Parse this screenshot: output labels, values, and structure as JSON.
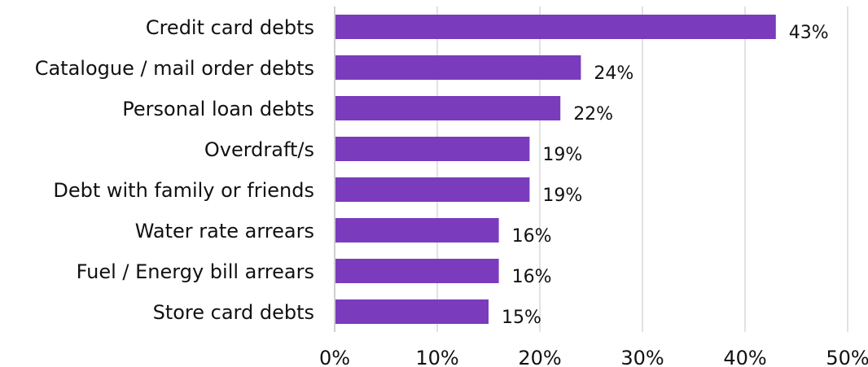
{
  "chart_data": {
    "type": "bar",
    "orientation": "horizontal",
    "title": "",
    "xlabel": "",
    "ylabel": "",
    "categories": [
      "Credit card debts",
      "Catalogue / mail order debts",
      "Personal loan debts",
      "Overdraft/s",
      "Debt with family or friends",
      "Water rate arrears",
      "Fuel / Energy bill arrears",
      "Store card debts"
    ],
    "values": [
      43,
      24,
      22,
      19,
      19,
      16,
      16,
      15
    ],
    "data_labels": [
      "43%",
      "24%",
      "22%",
      "19%",
      "19%",
      "16%",
      "16%",
      "15%"
    ],
    "xlim": [
      0,
      50
    ],
    "xticks": [
      0,
      10,
      20,
      30,
      40,
      50
    ],
    "xtick_labels": [
      "0%",
      "10%",
      "20%",
      "30%",
      "40%",
      "50%"
    ],
    "grid": "vertical",
    "legend": "none",
    "colors": {
      "bar": "#7a3bbd"
    }
  }
}
